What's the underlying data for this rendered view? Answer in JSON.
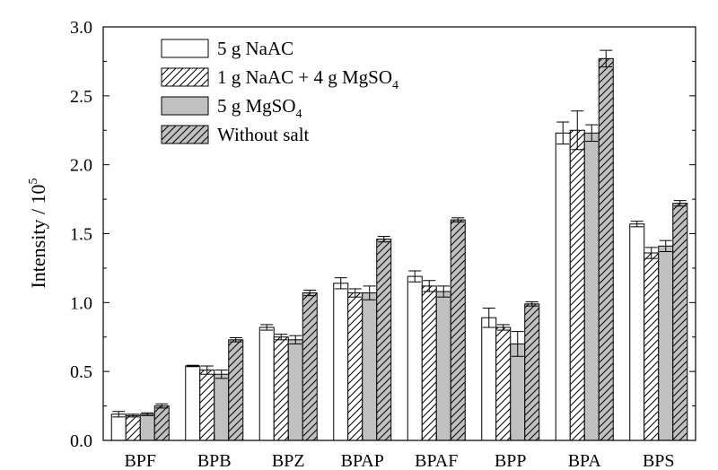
{
  "chart_data": {
    "type": "bar",
    "categories": [
      "BPF",
      "BPB",
      "BPZ",
      "BPAP",
      "BPAF",
      "BPP",
      "BPA",
      "BPS"
    ],
    "ylabel": "Intensity / 10",
    "ylabel_sup": "5",
    "ylim": [
      0.0,
      3.0
    ],
    "yticks": [
      "0.0",
      "0.5",
      "1.0",
      "1.5",
      "2.0",
      "2.5",
      "3.0"
    ],
    "legend_position": "top-left",
    "series": [
      {
        "name": "5 g NaAC",
        "fill": "#ffffff",
        "hatch": false,
        "values": [
          0.19,
          0.54,
          0.82,
          1.14,
          1.19,
          0.89,
          2.23,
          1.57
        ],
        "errors": [
          0.02,
          0.005,
          0.02,
          0.04,
          0.04,
          0.07,
          0.08,
          0.02
        ]
      },
      {
        "name": "1 g NaAC + 4 g MgSO",
        "name_sub": "4",
        "fill": "#ffffff",
        "hatch": true,
        "values": [
          0.18,
          0.51,
          0.75,
          1.07,
          1.12,
          0.82,
          2.25,
          1.36
        ],
        "errors": [
          0.01,
          0.03,
          0.02,
          0.03,
          0.04,
          0.02,
          0.14,
          0.04
        ]
      },
      {
        "name": "5 g MgSO",
        "name_sub": "4",
        "fill": "#c0c0c0",
        "hatch": false,
        "values": [
          0.19,
          0.48,
          0.73,
          1.07,
          1.08,
          0.7,
          2.23,
          1.41
        ],
        "errors": [
          0.01,
          0.03,
          0.03,
          0.05,
          0.04,
          0.09,
          0.06,
          0.04
        ]
      },
      {
        "name": "Without salt",
        "fill": "#c0c0c0",
        "hatch": true,
        "values": [
          0.25,
          0.73,
          1.07,
          1.46,
          1.6,
          0.99,
          2.77,
          1.72
        ],
        "errors": [
          0.015,
          0.015,
          0.02,
          0.02,
          0.015,
          0.015,
          0.06,
          0.02
        ]
      }
    ]
  }
}
